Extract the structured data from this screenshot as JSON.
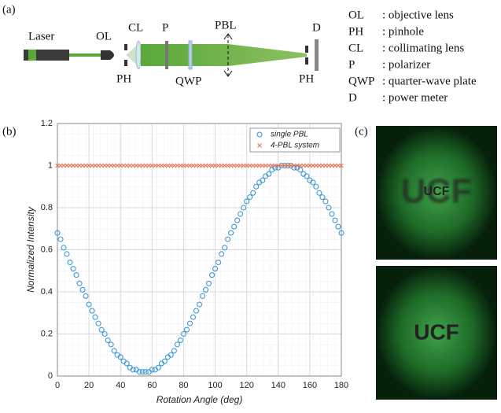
{
  "panel_labels": [
    "(a)",
    "(b)",
    "(c)"
  ],
  "diagram": {
    "components": [
      "Laser",
      "OL",
      "CL",
      "P",
      "PBL",
      "D"
    ],
    "lower_labels": [
      "PH",
      "QWP",
      "PH"
    ]
  },
  "abbreviations": [
    [
      "OL",
      ": objective lens"
    ],
    [
      "PH",
      ": pinhole"
    ],
    [
      "CL",
      ": collimating lens"
    ],
    [
      "P",
      ": polarizer"
    ],
    [
      "QWP",
      ": quarter-wave plate"
    ],
    [
      "D",
      ": power meter"
    ]
  ],
  "chart_data": {
    "type": "scatter",
    "xlabel": "Rotation Angle (deg)",
    "ylabel": "Normalized Intensity",
    "xlim": [
      0,
      180
    ],
    "ylim": [
      0,
      1.2
    ],
    "xticks": [
      0,
      20,
      40,
      60,
      80,
      100,
      120,
      140,
      160,
      180
    ],
    "yticks": [
      0,
      0.2,
      0.4,
      0.6,
      0.8,
      1,
      1.2
    ],
    "grid": true,
    "legend": "upper right",
    "x": [
      0,
      2,
      4,
      6,
      8,
      10,
      12,
      14,
      16,
      18,
      20,
      22,
      24,
      26,
      28,
      30,
      32,
      34,
      36,
      38,
      40,
      42,
      44,
      46,
      48,
      50,
      52,
      54,
      56,
      58,
      60,
      62,
      64,
      66,
      68,
      70,
      72,
      74,
      76,
      78,
      80,
      82,
      84,
      86,
      88,
      90,
      92,
      94,
      96,
      98,
      100,
      102,
      104,
      106,
      108,
      110,
      112,
      114,
      116,
      118,
      120,
      122,
      124,
      126,
      128,
      130,
      132,
      134,
      136,
      138,
      140,
      142,
      144,
      146,
      148,
      150,
      152,
      154,
      156,
      158,
      160,
      162,
      164,
      166,
      168,
      170,
      172,
      174,
      176,
      178,
      180
    ],
    "series": [
      {
        "name": "single PBL",
        "color": "#3d9ad6",
        "marker": "circle",
        "values": [
          0.68,
          0.65,
          0.61,
          0.58,
          0.54,
          0.51,
          0.48,
          0.44,
          0.41,
          0.38,
          0.34,
          0.31,
          0.28,
          0.25,
          0.22,
          0.2,
          0.17,
          0.15,
          0.12,
          0.1,
          0.09,
          0.07,
          0.06,
          0.04,
          0.03,
          0.03,
          0.02,
          0.02,
          0.02,
          0.02,
          0.03,
          0.03,
          0.04,
          0.06,
          0.07,
          0.09,
          0.1,
          0.12,
          0.15,
          0.17,
          0.2,
          0.22,
          0.25,
          0.28,
          0.31,
          0.34,
          0.38,
          0.41,
          0.44,
          0.48,
          0.51,
          0.54,
          0.58,
          0.61,
          0.65,
          0.68,
          0.71,
          0.74,
          0.77,
          0.8,
          0.83,
          0.85,
          0.87,
          0.9,
          0.92,
          0.93,
          0.95,
          0.96,
          0.98,
          0.99,
          0.99,
          1,
          1,
          1,
          1,
          0.99,
          0.99,
          0.98,
          0.96,
          0.95,
          0.93,
          0.92,
          0.9,
          0.87,
          0.85,
          0.83,
          0.8,
          0.77,
          0.74,
          0.71,
          0.68
        ]
      },
      {
        "name": "4-PBL system",
        "color": "#e8704f",
        "marker": "x",
        "values": [
          1,
          1,
          1,
          1,
          1,
          1,
          1,
          1,
          1,
          1,
          1,
          1,
          1,
          1,
          1,
          1,
          1,
          1,
          1,
          1,
          1,
          1,
          1,
          1,
          1,
          1,
          1,
          1,
          1,
          1,
          1,
          1,
          1,
          1,
          1,
          1,
          1,
          1,
          1,
          1,
          1,
          1,
          1,
          1,
          1,
          1,
          1,
          1,
          1,
          1,
          1,
          1,
          1,
          1,
          1,
          1,
          1,
          1,
          1,
          1,
          1,
          1,
          1,
          1,
          1,
          1,
          1,
          1,
          1,
          1,
          1,
          1,
          1,
          1,
          1,
          1,
          1,
          1,
          1,
          1,
          1,
          1,
          1,
          1,
          1,
          1,
          1,
          1,
          1,
          1,
          1
        ]
      }
    ]
  },
  "images": [
    {
      "text": "UCF"
    },
    {
      "text": "UCF"
    }
  ]
}
